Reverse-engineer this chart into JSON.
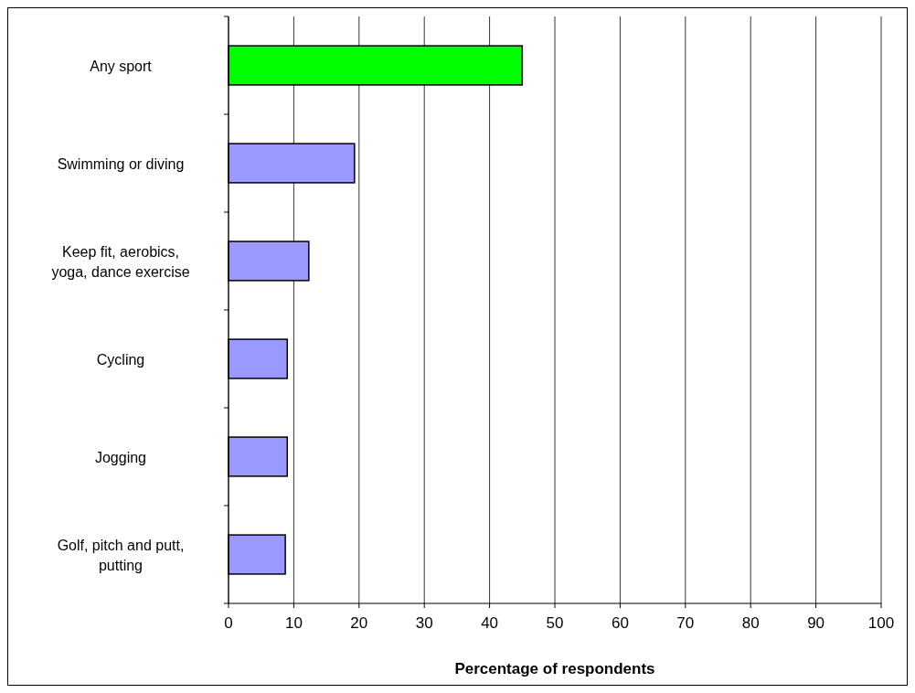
{
  "chart_data": {
    "type": "bar",
    "orientation": "horizontal",
    "xlabel": "Percentage of respondents",
    "categories": [
      "Any sport",
      "Swimming or diving",
      "Keep fit, aerobics, yoga, dance exercise",
      "Cycling",
      "Jogging",
      "Golf, pitch and putt, putting"
    ],
    "values": [
      45,
      19.3,
      12.3,
      9,
      9,
      8.7
    ],
    "colors": [
      "#00ff00",
      "#9999ff",
      "#9999ff",
      "#9999ff",
      "#9999ff",
      "#9999ff"
    ],
    "xlim": [
      0,
      100
    ],
    "xticks": [
      0,
      10,
      20,
      30,
      40,
      50,
      60,
      70,
      80,
      90,
      100
    ],
    "grid": "x"
  }
}
